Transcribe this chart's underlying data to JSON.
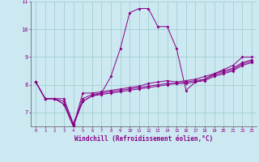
{
  "xlabel": "Windchill (Refroidissement éolien,°C)",
  "background_color": "#cce8f0",
  "grid_color": "#99cccc",
  "line_color": "#880088",
  "x_values": [
    0,
    1,
    2,
    3,
    4,
    5,
    6,
    7,
    8,
    9,
    10,
    11,
    12,
    13,
    14,
    15,
    16,
    17,
    18,
    19,
    20,
    21,
    22,
    23
  ],
  "series1": [
    8.1,
    7.5,
    7.5,
    7.5,
    6.6,
    7.4,
    7.6,
    7.7,
    8.3,
    9.3,
    10.6,
    10.75,
    10.75,
    10.1,
    10.1,
    9.3,
    7.8,
    8.1,
    8.2,
    8.4,
    8.55,
    8.7,
    9.0,
    9.0
  ],
  "series2": [
    8.1,
    7.5,
    7.5,
    7.3,
    6.5,
    7.7,
    7.7,
    7.75,
    7.8,
    7.85,
    7.9,
    7.95,
    8.05,
    8.1,
    8.15,
    8.1,
    8.15,
    8.2,
    8.3,
    8.4,
    8.5,
    8.6,
    8.8,
    8.9
  ],
  "series3": [
    8.1,
    7.5,
    7.5,
    7.3,
    6.5,
    7.4,
    7.6,
    7.65,
    7.7,
    7.75,
    7.8,
    7.85,
    7.9,
    7.95,
    8.0,
    8.05,
    8.05,
    8.1,
    8.15,
    8.3,
    8.4,
    8.5,
    8.7,
    8.8
  ],
  "series4": [
    8.1,
    7.5,
    7.5,
    7.4,
    6.55,
    7.5,
    7.65,
    7.7,
    7.75,
    7.8,
    7.85,
    7.9,
    7.95,
    8.0,
    8.05,
    8.05,
    8.1,
    8.15,
    8.2,
    8.35,
    8.45,
    8.55,
    8.75,
    8.85
  ],
  "ylim": [
    6.5,
    11.0
  ],
  "xlim": [
    -0.5,
    23.5
  ],
  "yticks": [
    7,
    8,
    9,
    10,
    11
  ],
  "xticks": [
    0,
    1,
    2,
    3,
    4,
    5,
    6,
    7,
    8,
    9,
    10,
    11,
    12,
    13,
    14,
    15,
    16,
    17,
    18,
    19,
    20,
    21,
    22,
    23
  ]
}
